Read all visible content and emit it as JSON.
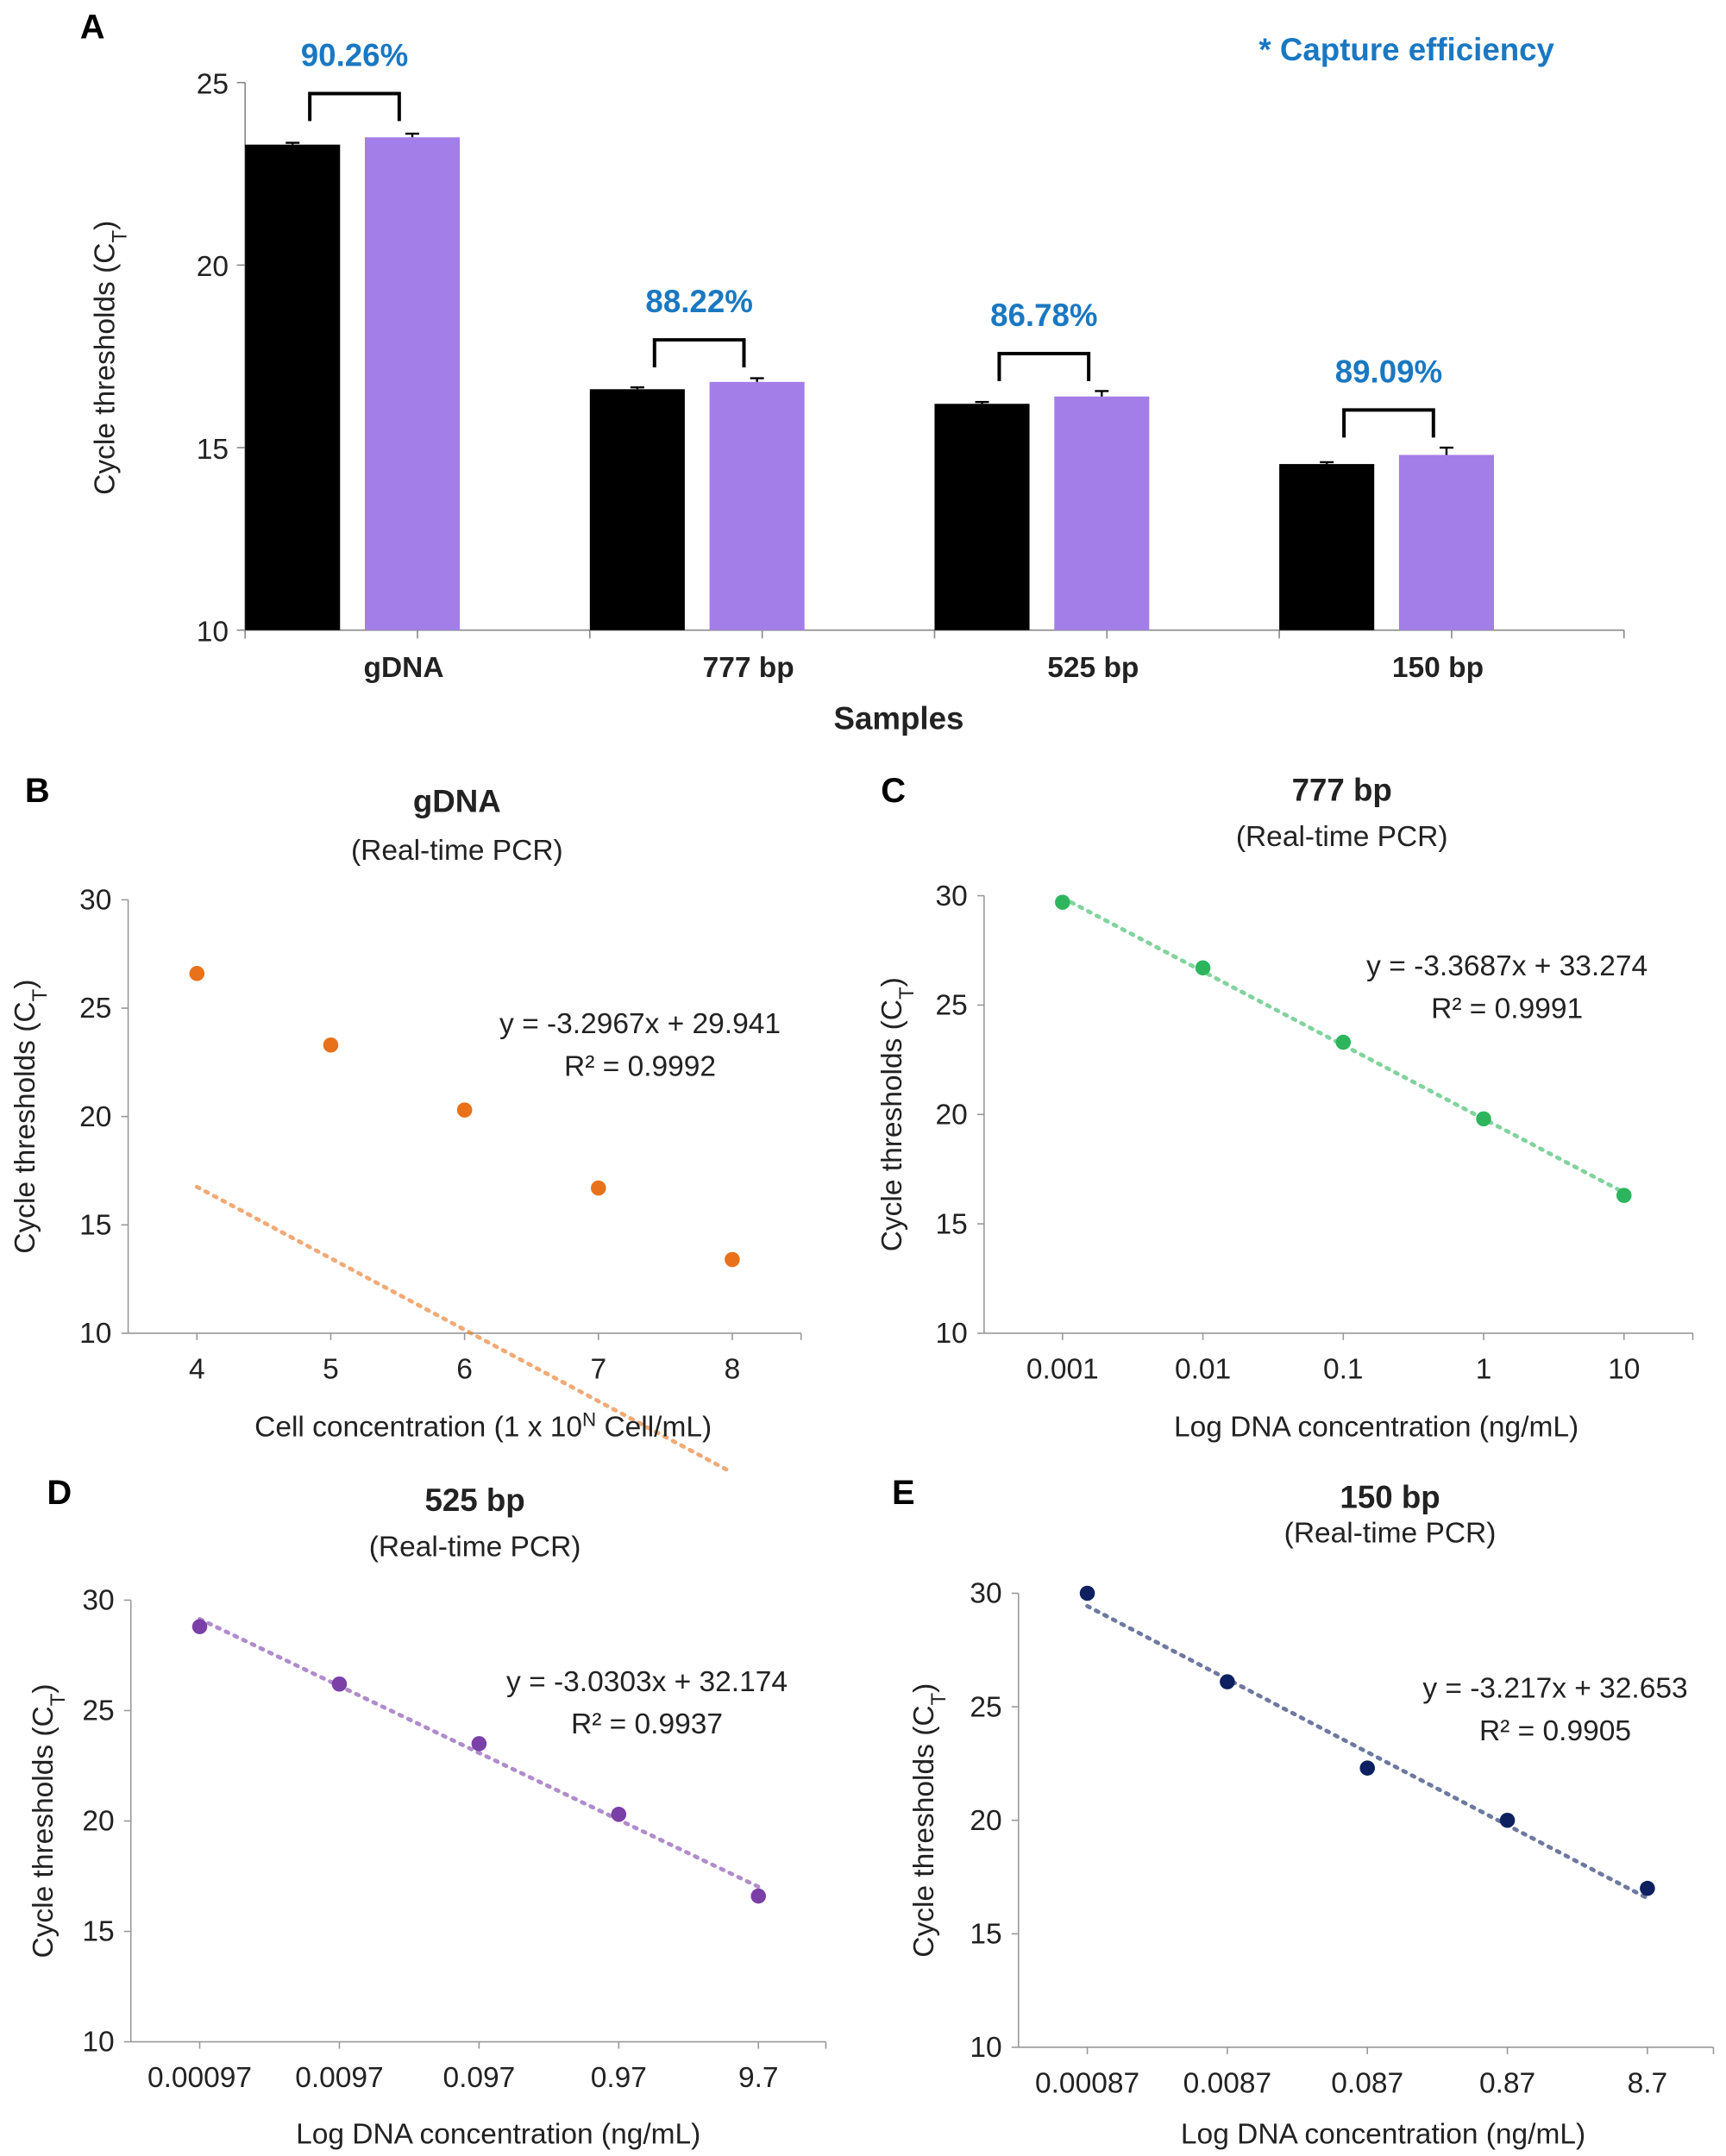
{
  "chart_data": [
    {
      "panel": "A",
      "type": "bar",
      "categories": [
        "gDNA",
        "777 bp",
        "525 bp",
        "150 bp"
      ],
      "series": [
        {
          "color": "#000000",
          "values": [
            23.3,
            16.6,
            16.2,
            14.55
          ],
          "errors": [
            0.05,
            0.05,
            0.05,
            0.05
          ]
        },
        {
          "color": "#a47ee8",
          "values": [
            23.5,
            16.8,
            16.4,
            14.8
          ],
          "errors": [
            0.1,
            0.1,
            0.15,
            0.2
          ]
        }
      ],
      "annotations": [
        "90.26%",
        "88.22%",
        "86.78%",
        "89.09%"
      ],
      "annotation_color": "#1a78c2",
      "note": "* Capture efficiency",
      "xlabel": "Samples",
      "ylabel": "Cycle thresholds (C",
      "ylabel_sub": "T",
      "ylabel_end": ")",
      "ylim": [
        10,
        25
      ],
      "yticks": [
        "10",
        "15",
        "20",
        "25"
      ]
    },
    {
      "panel": "B",
      "type": "scatter",
      "title": "gDNA",
      "subtitle": "(Real-time PCR)",
      "x": [
        4,
        5,
        6,
        7,
        8
      ],
      "xticks": [
        "4",
        "5",
        "6",
        "7",
        "8"
      ],
      "y": [
        26.6,
        23.3,
        20.3,
        16.7,
        13.4
      ],
      "color": "#e8711a",
      "fit": {
        "slope": -3.2967,
        "intercept": 29.941
      },
      "equation": "y = -3.2967x + 29.941",
      "r2": "R² = 0.9992",
      "xlabel": "Cell concentration (1 x 10",
      "xlabel_sup": "N",
      "xlabel_end": " Cell/mL)",
      "ylabel": "Cycle thresholds (C",
      "ylabel_sub": "T",
      "ylabel_end": ")",
      "ylim": [
        10,
        30
      ],
      "yticks": [
        "10",
        "15",
        "20",
        "25",
        "30"
      ]
    },
    {
      "panel": "C",
      "type": "scatter",
      "title": "777 bp",
      "subtitle": "(Real-time PCR)",
      "x": [
        0.001,
        0.01,
        0.1,
        1,
        10
      ],
      "xticks": [
        "0.001",
        "0.01",
        "0.1",
        "1",
        "10"
      ],
      "y": [
        29.7,
        26.7,
        23.3,
        19.8,
        16.3
      ],
      "color": "#2db55d",
      "fit": {
        "slope": -3.3687,
        "intercept": 33.274
      },
      "equation": "y = -3.3687x + 33.274",
      "r2": "R² = 0.9991",
      "xlabel": "Log DNA concentration (ng/mL)",
      "ylabel": "Cycle thresholds (C",
      "ylabel_sub": "T",
      "ylabel_end": ")",
      "ylim": [
        10,
        30
      ],
      "yticks": [
        "10",
        "15",
        "20",
        "25",
        "30"
      ]
    },
    {
      "panel": "D",
      "type": "scatter",
      "title": "525 bp",
      "subtitle": "(Real-time PCR)",
      "x": [
        0.00097,
        0.0097,
        0.097,
        0.97,
        9.7
      ],
      "xticks": [
        "0.00097",
        "0.0097",
        "0.097",
        "0.97",
        "9.7"
      ],
      "y": [
        28.8,
        26.2,
        23.5,
        20.3,
        16.6
      ],
      "color": "#7b3fa8",
      "fit": {
        "slope": -3.0303,
        "intercept": 32.174
      },
      "equation": "y = -3.0303x + 32.174",
      "r2": "R² = 0.9937",
      "xlabel": "Log DNA concentration (ng/mL)",
      "ylabel": "Cycle thresholds (C",
      "ylabel_sub": "T",
      "ylabel_end": ")",
      "ylim": [
        10,
        30
      ],
      "yticks": [
        "10",
        "15",
        "20",
        "25",
        "30"
      ]
    },
    {
      "panel": "E",
      "type": "scatter",
      "title": "150 bp",
      "subtitle": "(Real-time PCR)",
      "x": [
        0.00087,
        0.0087,
        0.087,
        0.87,
        8.7
      ],
      "xticks": [
        "0.00087",
        "0.0087",
        "0.087",
        "0.87",
        "8.7"
      ],
      "y": [
        30.0,
        26.1,
        22.3,
        20.0,
        17.0
      ],
      "color": "#0d2060",
      "fit": {
        "slope": -3.217,
        "intercept": 32.653
      },
      "equation": "y = -3.217x + 32.653",
      "r2": "R² = 0.9905",
      "xlabel": "Log DNA concentration (ng/mL)",
      "ylabel": "Cycle thresholds (C",
      "ylabel_sub": "T",
      "ylabel_end": ")",
      "ylim": [
        10,
        30
      ],
      "yticks": [
        "10",
        "15",
        "20",
        "25",
        "30"
      ]
    }
  ]
}
